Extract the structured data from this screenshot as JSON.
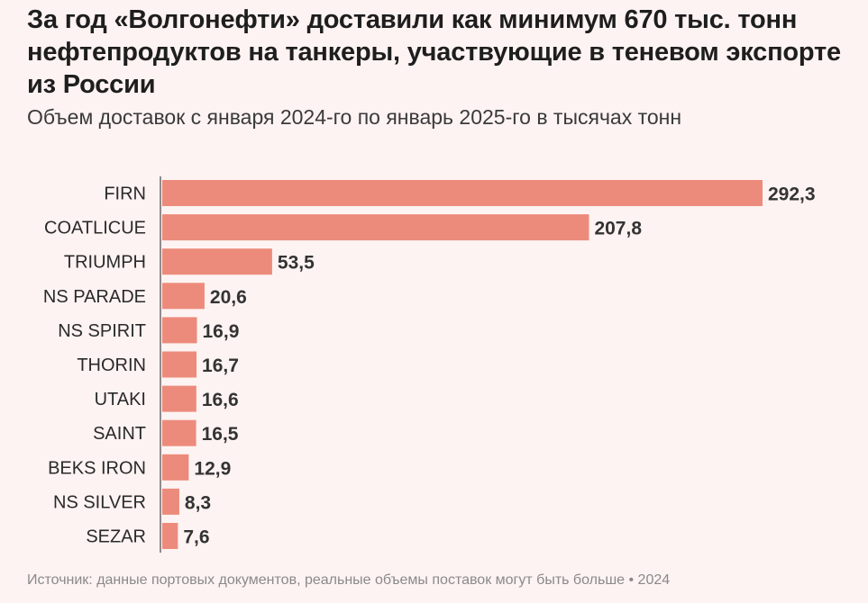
{
  "title": "За год «Волгонефти» доставили как минимум 670 тыс. тонн нефтепродуктов на танкеры, участвующие в теневом экспорте из России",
  "subtitle": "Объем доставок с января 2024-го по январь 2025-го в тысячах тонн",
  "source": "Источник: данные портовых документов, реальные объемы поставок могут быть больше • 2024",
  "colors": {
    "bar": "#ec8b7b",
    "axis": "#6b6b6b",
    "label": "#2a2a2a",
    "value": "#333333",
    "background": "#fdf3f2"
  },
  "chart_data": {
    "type": "bar",
    "orientation": "horizontal",
    "title": "За год «Волгонефти» доставили как минимум 670 тыс. тонн нефтепродуктов на танкеры, участвующие в теневом экспорте из России",
    "xlabel": "",
    "ylabel": "",
    "unit": "тыс. тонн",
    "xlim": [
      0,
      300
    ],
    "categories": [
      "FIRN",
      "COATLICUE",
      "TRIUMPH",
      "NS PARADE",
      "NS SPIRIT",
      "THORIN",
      "UTAKI",
      "SAINT",
      "BEKS IRON",
      "NS SILVER",
      "SEZAR"
    ],
    "values": [
      292.3,
      207.8,
      53.5,
      20.6,
      16.9,
      16.7,
      16.6,
      16.5,
      12.9,
      8.3,
      7.6
    ],
    "value_labels": [
      "292,3",
      "207,8",
      "53,5",
      "20,6",
      "16,9",
      "16,7",
      "16,6",
      "16,5",
      "12,9",
      "8,3",
      "7,6"
    ]
  }
}
